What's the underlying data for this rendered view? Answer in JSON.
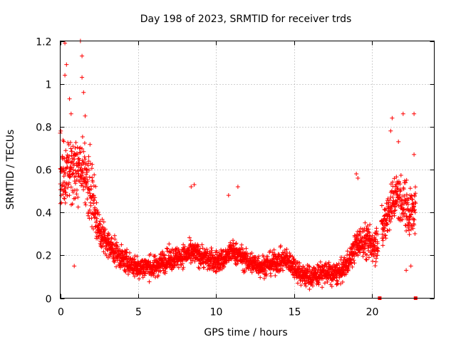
{
  "chart_data": {
    "type": "scatter",
    "title": "Day 198 of 2023, SRMTID for receiver trds",
    "xlabel": "GPS time / hours",
    "ylabel": "SRMTID / TECUs",
    "xlim": [
      0,
      24
    ],
    "ylim": [
      0,
      1.2
    ],
    "xticks": [
      0,
      5,
      10,
      15,
      20
    ],
    "yticks": [
      0,
      0.2,
      0.4,
      0.6,
      0.8,
      1,
      1.2
    ],
    "xtick_labels": [
      "0",
      "5",
      "10",
      "15",
      "20"
    ],
    "ytick_labels": [
      "0",
      "0.2",
      "0.4",
      "0.6",
      "0.8",
      "1",
      "1.2"
    ],
    "grid": true,
    "marker": "plus",
    "color": "#ff0000",
    "trend": [
      {
        "x": 0.0,
        "y": 0.6
      },
      {
        "x": 0.5,
        "y": 0.58
      },
      {
        "x": 1.0,
        "y": 0.6
      },
      {
        "x": 1.5,
        "y": 0.58
      },
      {
        "x": 2.0,
        "y": 0.5
      },
      {
        "x": 2.5,
        "y": 0.32
      },
      {
        "x": 3.0,
        "y": 0.25
      },
      {
        "x": 3.5,
        "y": 0.22
      },
      {
        "x": 4.0,
        "y": 0.18
      },
      {
        "x": 4.5,
        "y": 0.16
      },
      {
        "x": 5.0,
        "y": 0.14
      },
      {
        "x": 5.5,
        "y": 0.15
      },
      {
        "x": 6.0,
        "y": 0.14
      },
      {
        "x": 6.5,
        "y": 0.17
      },
      {
        "x": 7.0,
        "y": 0.18
      },
      {
        "x": 7.5,
        "y": 0.19
      },
      {
        "x": 8.0,
        "y": 0.2
      },
      {
        "x": 8.5,
        "y": 0.21
      },
      {
        "x": 9.0,
        "y": 0.2
      },
      {
        "x": 9.5,
        "y": 0.18
      },
      {
        "x": 10.0,
        "y": 0.17
      },
      {
        "x": 10.5,
        "y": 0.18
      },
      {
        "x": 11.0,
        "y": 0.22
      },
      {
        "x": 11.5,
        "y": 0.2
      },
      {
        "x": 12.0,
        "y": 0.17
      },
      {
        "x": 12.5,
        "y": 0.16
      },
      {
        "x": 13.0,
        "y": 0.15
      },
      {
        "x": 13.5,
        "y": 0.16
      },
      {
        "x": 14.0,
        "y": 0.17
      },
      {
        "x": 14.5,
        "y": 0.18
      },
      {
        "x": 15.0,
        "y": 0.15
      },
      {
        "x": 15.5,
        "y": 0.11
      },
      {
        "x": 16.0,
        "y": 0.1
      },
      {
        "x": 16.5,
        "y": 0.11
      },
      {
        "x": 17.0,
        "y": 0.12
      },
      {
        "x": 17.5,
        "y": 0.11
      },
      {
        "x": 18.0,
        "y": 0.12
      },
      {
        "x": 18.5,
        "y": 0.17
      },
      {
        "x": 19.0,
        "y": 0.25
      },
      {
        "x": 19.5,
        "y": 0.27
      },
      {
        "x": 20.0,
        "y": 0.25
      },
      {
        "x": 20.5,
        "y": 0.28
      },
      {
        "x": 21.0,
        "y": 0.4
      },
      {
        "x": 21.5,
        "y": 0.48
      },
      {
        "x": 22.0,
        "y": 0.45
      },
      {
        "x": 22.5,
        "y": 0.4
      },
      {
        "x": 22.8,
        "y": 0.4
      }
    ],
    "spread": [
      {
        "x": 0.0,
        "s": 0.13
      },
      {
        "x": 2.0,
        "s": 0.13
      },
      {
        "x": 2.5,
        "s": 0.07
      },
      {
        "x": 4.0,
        "s": 0.045
      },
      {
        "x": 18.5,
        "s": 0.045
      },
      {
        "x": 19.5,
        "s": 0.07
      },
      {
        "x": 21.0,
        "s": 0.09
      },
      {
        "x": 22.8,
        "s": 0.11
      }
    ],
    "notable_points": [
      {
        "x": 0.3,
        "y": 1.19
      },
      {
        "x": 1.3,
        "y": 1.2
      },
      {
        "x": 1.4,
        "y": 1.13
      },
      {
        "x": 0.4,
        "y": 1.09
      },
      {
        "x": 0.3,
        "y": 1.04
      },
      {
        "x": 1.4,
        "y": 1.03
      },
      {
        "x": 1.5,
        "y": 0.96
      },
      {
        "x": 0.6,
        "y": 0.93
      },
      {
        "x": 0.7,
        "y": 0.86
      },
      {
        "x": 1.6,
        "y": 0.85
      },
      {
        "x": 0.0,
        "y": 0.77
      },
      {
        "x": 11.4,
        "y": 0.52
      },
      {
        "x": 8.6,
        "y": 0.53
      },
      {
        "x": 8.4,
        "y": 0.52
      },
      {
        "x": 10.8,
        "y": 0.48
      },
      {
        "x": 19.0,
        "y": 0.58
      },
      {
        "x": 19.1,
        "y": 0.56
      },
      {
        "x": 21.3,
        "y": 0.84
      },
      {
        "x": 21.2,
        "y": 0.78
      },
      {
        "x": 22.0,
        "y": 0.86
      },
      {
        "x": 22.7,
        "y": 0.86
      },
      {
        "x": 22.7,
        "y": 0.67
      },
      {
        "x": 21.7,
        "y": 0.73
      },
      {
        "x": 22.5,
        "y": 0.15
      },
      {
        "x": 22.2,
        "y": 0.13
      },
      {
        "x": 0.9,
        "y": 0.15
      }
    ],
    "square_markers": [
      {
        "x": 20.5,
        "y": 0.0
      },
      {
        "x": 22.8,
        "y": 0.0
      }
    ],
    "gap": [
      20.4,
      20.6
    ],
    "x_range_data": [
      0.0,
      22.8
    ]
  }
}
